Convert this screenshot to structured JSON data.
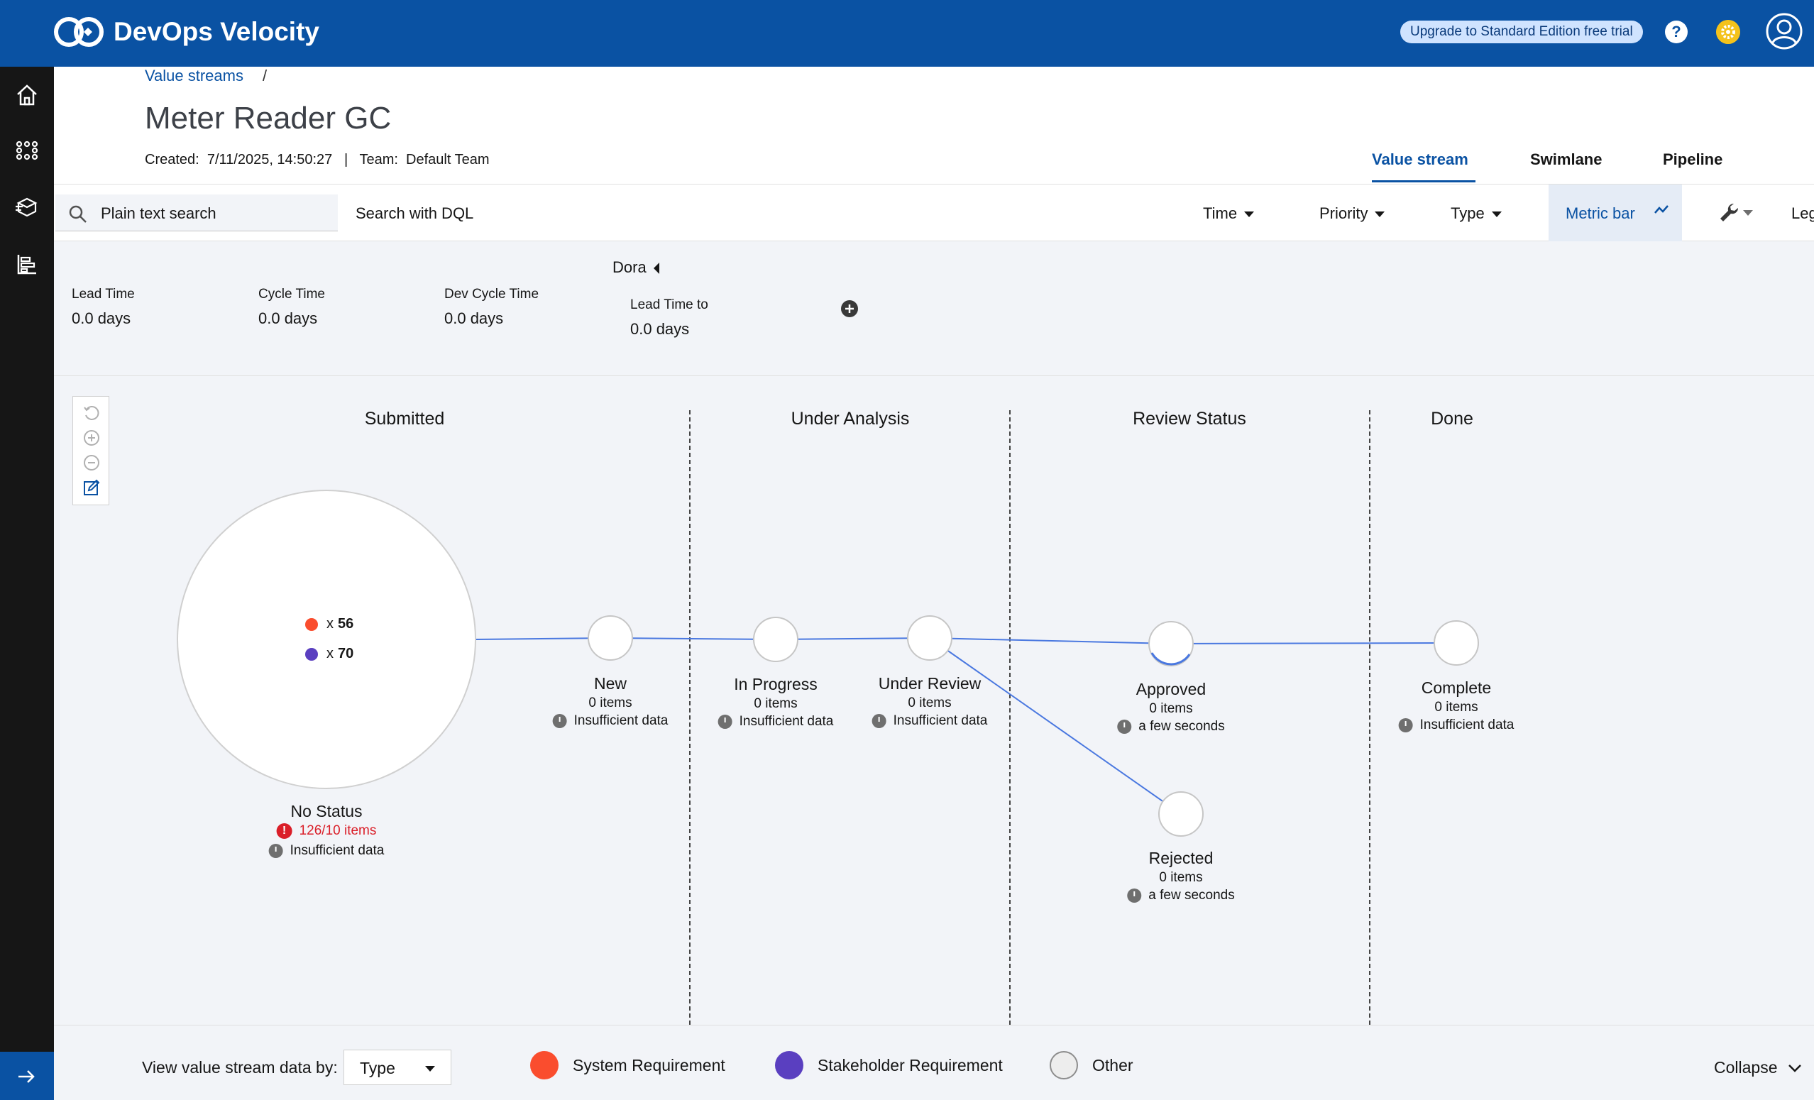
{
  "app": {
    "title": "DevOps Velocity",
    "upgrade": "Upgrade to Standard Edition free trial",
    "help_glyph": "?"
  },
  "nav": {
    "icons": [
      "home-icon",
      "value-streams-icon",
      "releases-icon",
      "dashboards-icon"
    ],
    "expand": "expand-arrow-icon"
  },
  "breadcrumb": {
    "link": "Value streams",
    "sep": "/"
  },
  "page": {
    "title": "Meter Reader GC",
    "meta": "Created:  7/11/2025, 14:50:27   |   Team:  Default Team"
  },
  "tabs": [
    {
      "label": "Value stream",
      "active": true
    },
    {
      "label": "Swimlane"
    },
    {
      "label": "Pipeline"
    }
  ],
  "filters": {
    "search_placeholder": "Plain text search",
    "dql": "Search with DQL",
    "time": "Time",
    "priority": "Priority",
    "type": "Type",
    "metric_bar": "Metric bar",
    "legend_cut": "Leg"
  },
  "metrics": {
    "group": "Dora",
    "items": [
      {
        "label": "Lead Time",
        "value": "0.0 days"
      },
      {
        "label": "Cycle Time",
        "value": "0.0 days"
      },
      {
        "label": "Dev Cycle Time",
        "value": "0.0 days"
      },
      {
        "label": "Lead Time to",
        "value": "0.0 days"
      }
    ]
  },
  "columns": [
    "Submitted",
    "Under Analysis",
    "Review Status",
    "Done"
  ],
  "nodes": {
    "no_status": {
      "name": "No Status",
      "items": "126/10 items",
      "time": "Insufficient data",
      "counts": [
        "x",
        "56",
        "x",
        "70"
      ]
    },
    "new": {
      "name": "New",
      "items": "0 items",
      "time": "Insufficient data"
    },
    "in_progress": {
      "name": "In Progress",
      "items": "0 items",
      "time": "Insufficient data"
    },
    "under_review": {
      "name": "Under Review",
      "items": "0 items",
      "time": "Insufficient data"
    },
    "approved": {
      "name": "Approved",
      "items": "0 items",
      "time": "a few seconds"
    },
    "rejected": {
      "name": "Rejected",
      "items": "0 items",
      "time": "a few seconds"
    },
    "complete": {
      "name": "Complete",
      "items": "0 items",
      "time": "Insufficient data"
    }
  },
  "bottom": {
    "label": "View value stream data by:",
    "select": "Type",
    "legend": [
      {
        "label": "System Requirement",
        "color": "#fa4d2e"
      },
      {
        "label": "Stakeholder Requirement",
        "color": "#5a3fc0"
      },
      {
        "label": "Other",
        "color": "#ededed"
      }
    ],
    "collapse": "Collapse"
  },
  "colors": {
    "brand": "#0a52a3",
    "flow": "#4a78e0",
    "warning": "#da1e28"
  }
}
